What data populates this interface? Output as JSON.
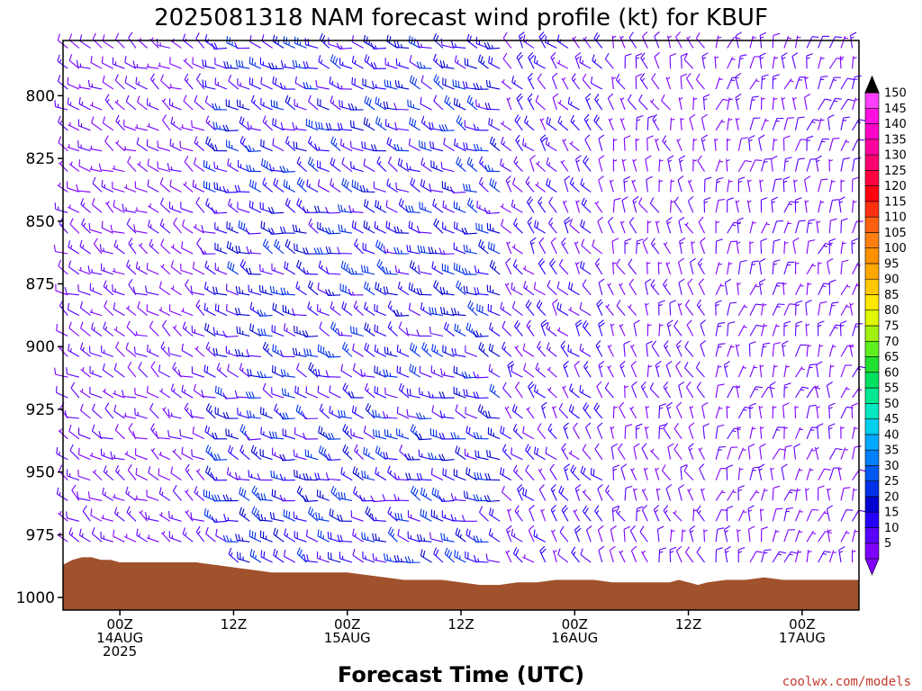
{
  "chart_data": {
    "type": "wind_barb_time_height",
    "title": "2025081318 NAM forecast wind profile (kt) for KBUF",
    "xlabel": "Forecast Time (UTC)",
    "ylabel": "",
    "credit": "coolwx.com/models",
    "y_axis": {
      "ticks": [
        800,
        825,
        850,
        875,
        900,
        925,
        950,
        975,
        1000
      ],
      "range_hPa": [
        1005,
        778
      ],
      "inverted": true
    },
    "x_axis": {
      "range_hours": [
        18,
        102
      ],
      "ticks": [
        {
          "hour": 24,
          "lines": [
            "00Z",
            "14AUG",
            "2025"
          ]
        },
        {
          "hour": 36,
          "lines": [
            "12Z"
          ]
        },
        {
          "hour": 48,
          "lines": [
            "00Z",
            "15AUG"
          ]
        },
        {
          "hour": 60,
          "lines": [
            "12Z"
          ]
        },
        {
          "hour": 72,
          "lines": [
            "00Z",
            "16AUG"
          ]
        },
        {
          "hour": 84,
          "lines": [
            "12Z"
          ]
        },
        {
          "hour": 96,
          "lines": [
            "00Z",
            "17AUG"
          ]
        }
      ]
    },
    "colorbar": {
      "units": "kt",
      "levels": [
        5,
        10,
        15,
        20,
        25,
        30,
        35,
        40,
        45,
        50,
        55,
        60,
        65,
        70,
        75,
        80,
        85,
        90,
        95,
        100,
        105,
        110,
        115,
        120,
        125,
        130,
        135,
        140,
        145,
        150
      ],
      "colors": [
        "#7f00ff",
        "#5a00ff",
        "#2200ff",
        "#0000d0",
        "#0030e8",
        "#0058f0",
        "#0080ff",
        "#00a8ff",
        "#00d0f0",
        "#00e8c0",
        "#00e890",
        "#00e060",
        "#20e030",
        "#60f020",
        "#a0f010",
        "#e0f800",
        "#ffe800",
        "#ffc800",
        "#ffa800",
        "#ff9000",
        "#ff8010",
        "#ff6010",
        "#ff3010",
        "#ff0010",
        "#ff0040",
        "#ff0070",
        "#ff00a0",
        "#ff00c8",
        "#ff10e0",
        "#ff40ff"
      ]
    },
    "surface_pressure": {
      "hours": [
        18,
        19,
        20,
        21,
        22,
        23,
        24,
        26,
        28,
        30,
        32,
        34,
        36,
        38,
        40,
        42,
        44,
        46,
        48,
        50,
        52,
        54,
        56,
        58,
        60,
        62,
        64,
        66,
        68,
        70,
        72,
        74,
        76,
        78,
        80,
        82,
        83,
        84,
        85,
        86,
        88,
        90,
        92,
        94,
        96,
        98,
        100,
        102
      ],
      "values_hPa": [
        987,
        985,
        984,
        984,
        985,
        985,
        986,
        986,
        986,
        986,
        986,
        987,
        988,
        989,
        990,
        990,
        990,
        990,
        990,
        991,
        992,
        993,
        993,
        993,
        994,
        995,
        995,
        994,
        994,
        993,
        993,
        993,
        994,
        994,
        994,
        994,
        993,
        994,
        995,
        994,
        993,
        993,
        992,
        993,
        993,
        993,
        993,
        993
      ]
    },
    "barb_field": {
      "hour_step": 1.2,
      "pressure_step_hPa": 8.2,
      "regimes": [
        {
          "hours": [
            18,
            33
          ],
          "direction_deg": 300,
          "speed_kt": [
            5,
            15
          ]
        },
        {
          "hours": [
            33,
            65
          ],
          "direction_deg": 290,
          "speed_kt": [
            10,
            30
          ]
        },
        {
          "hours": [
            65,
            76
          ],
          "direction_deg": 320,
          "speed_kt": [
            5,
            20
          ]
        },
        {
          "hours": [
            76,
            86
          ],
          "direction_deg": 340,
          "speed_kt": [
            3,
            15
          ]
        },
        {
          "hours": [
            86,
            102
          ],
          "direction_deg": 10,
          "speed_kt": [
            3,
            15
          ]
        }
      ]
    }
  }
}
